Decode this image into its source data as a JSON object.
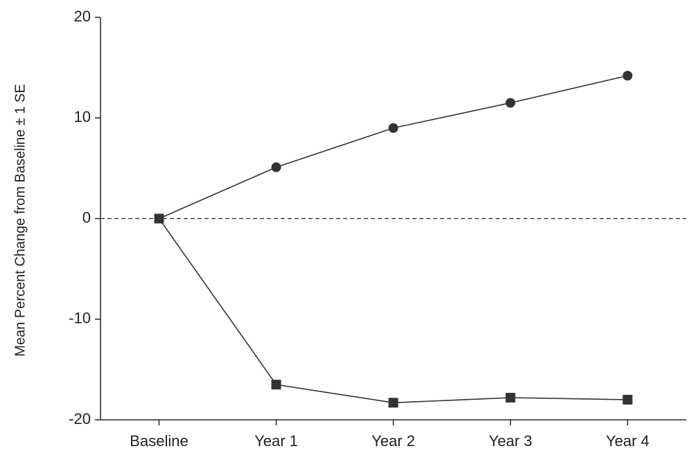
{
  "chart_data": {
    "type": "line",
    "y_label": "Mean Percent Change from Baseline  ± 1 SE",
    "categories": [
      "Baseline",
      "Year 1",
      "Year 2",
      "Year 3",
      "Year 4"
    ],
    "series": [
      {
        "color": "#333333",
        "marker": "circle",
        "values": [
          0,
          5.1,
          9.0,
          11.5,
          14.2
        ]
      },
      {
        "color": "#333333",
        "marker": "square",
        "values": [
          0,
          -16.5,
          -18.3,
          -17.8,
          -18.0
        ]
      }
    ],
    "ylim": [
      -20,
      20
    ],
    "yticks": [
      -20,
      -10,
      0,
      10,
      20
    ],
    "reference_line": 0
  }
}
